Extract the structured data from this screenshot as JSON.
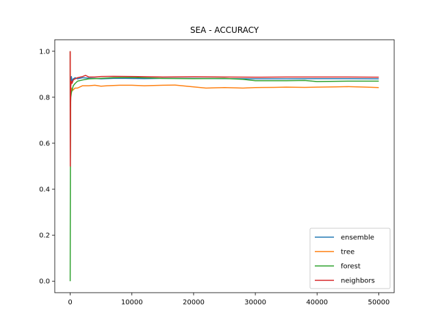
{
  "chart_data": {
    "type": "line",
    "title": "SEA - ACCURACY",
    "xlabel": "",
    "ylabel": "",
    "xlim": [
      -2500,
      52500
    ],
    "ylim": [
      -0.05,
      1.05
    ],
    "xticks": [
      0,
      10000,
      20000,
      30000,
      40000,
      50000
    ],
    "xtick_labels": [
      "0",
      "10000",
      "20000",
      "30000",
      "40000",
      "50000"
    ],
    "yticks": [
      0.0,
      0.2,
      0.4,
      0.6,
      0.8,
      1.0
    ],
    "ytick_labels": [
      "0.0",
      "0.2",
      "0.4",
      "0.6",
      "0.8",
      "1.0"
    ],
    "grid": false,
    "legend_position": "lower-right",
    "series": [
      {
        "name": "ensemble",
        "color": "#1f77b4",
        "x": [
          1,
          20,
          50,
          100,
          200,
          300,
          500,
          800,
          1200,
          2000,
          3000,
          4000,
          5000,
          7000,
          9000,
          12000,
          15000,
          20000,
          25000,
          30000,
          35000,
          40000,
          45000,
          50000
        ],
        "y": [
          1.0,
          0.5,
          0.8,
          0.86,
          0.89,
          0.87,
          0.88,
          0.885,
          0.88,
          0.885,
          0.883,
          0.882,
          0.88,
          0.882,
          0.882,
          0.881,
          0.882,
          0.882,
          0.881,
          0.88,
          0.88,
          0.881,
          0.881,
          0.88
        ]
      },
      {
        "name": "tree",
        "color": "#ff7f0e",
        "x": [
          1,
          20,
          50,
          100,
          200,
          400,
          800,
          1200,
          2000,
          3000,
          4000,
          5000,
          6000,
          8000,
          10000,
          12000,
          15000,
          17000,
          20000,
          22000,
          25000,
          28000,
          30000,
          33000,
          35000,
          38000,
          40000,
          43000,
          45000,
          48000,
          50000
        ],
        "y": [
          1.0,
          0.5,
          0.75,
          0.82,
          0.84,
          0.83,
          0.84,
          0.84,
          0.85,
          0.85,
          0.852,
          0.848,
          0.85,
          0.852,
          0.852,
          0.85,
          0.852,
          0.853,
          0.845,
          0.84,
          0.842,
          0.84,
          0.842,
          0.843,
          0.844,
          0.843,
          0.844,
          0.845,
          0.846,
          0.844,
          0.842
        ]
      },
      {
        "name": "forest",
        "color": "#2ca02c",
        "x": [
          1,
          20,
          50,
          100,
          200,
          300,
          500,
          800,
          1200,
          2000,
          3000,
          5000,
          7000,
          10000,
          13000,
          15000,
          20000,
          25000,
          28000,
          30000,
          35000,
          38000,
          40000,
          45000,
          50000
        ],
        "y": [
          0.0,
          0.33,
          0.75,
          0.8,
          0.82,
          0.83,
          0.85,
          0.86,
          0.87,
          0.875,
          0.88,
          0.882,
          0.885,
          0.886,
          0.884,
          0.882,
          0.881,
          0.882,
          0.878,
          0.872,
          0.872,
          0.873,
          0.868,
          0.87,
          0.87
        ]
      },
      {
        "name": "neighbors",
        "color": "#d62728",
        "x": [
          1,
          20,
          50,
          100,
          200,
          300,
          500,
          800,
          1200,
          2000,
          2500,
          3000,
          4000,
          5000,
          7000,
          10000,
          13000,
          15000,
          20000,
          25000,
          30000,
          35000,
          40000,
          45000,
          50000
        ],
        "y": [
          1.0,
          0.5,
          0.75,
          0.85,
          0.87,
          0.86,
          0.875,
          0.88,
          0.885,
          0.89,
          0.895,
          0.888,
          0.888,
          0.89,
          0.891,
          0.89,
          0.889,
          0.888,
          0.889,
          0.888,
          0.887,
          0.888,
          0.888,
          0.888,
          0.887
        ]
      }
    ]
  }
}
